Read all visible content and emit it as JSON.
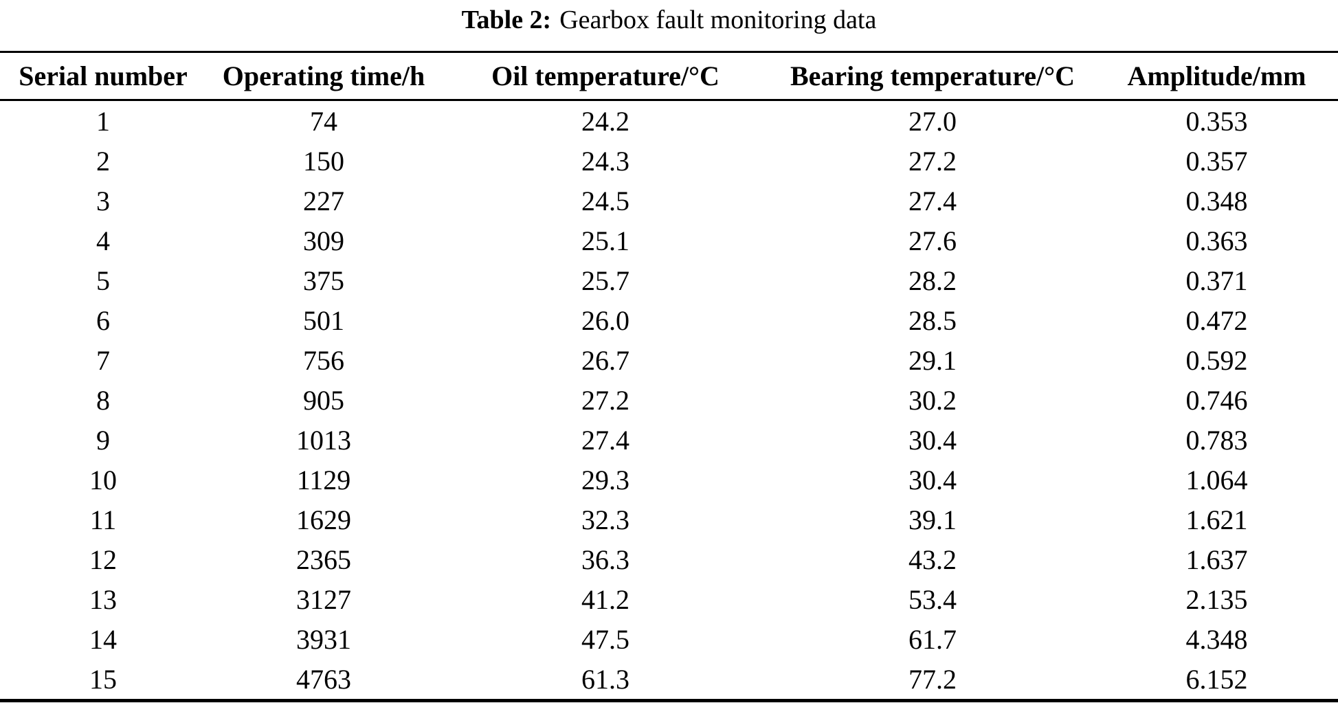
{
  "page": {
    "caption_label": "Table 2:",
    "caption_text": "Gearbox fault monitoring data"
  },
  "table": {
    "columns": [
      "Serial number",
      "Operating time/h",
      "Oil temperature/°C",
      "Bearing temperature/°C",
      "Amplitude/mm"
    ],
    "rows": [
      [
        "1",
        "74",
        "24.2",
        "27.0",
        "0.353"
      ],
      [
        "2",
        "150",
        "24.3",
        "27.2",
        "0.357"
      ],
      [
        "3",
        "227",
        "24.5",
        "27.4",
        "0.348"
      ],
      [
        "4",
        "309",
        "25.1",
        "27.6",
        "0.363"
      ],
      [
        "5",
        "375",
        "25.7",
        "28.2",
        "0.371"
      ],
      [
        "6",
        "501",
        "26.0",
        "28.5",
        "0.472"
      ],
      [
        "7",
        "756",
        "26.7",
        "29.1",
        "0.592"
      ],
      [
        "8",
        "905",
        "27.2",
        "30.2",
        "0.746"
      ],
      [
        "9",
        "1013",
        "27.4",
        "30.4",
        "0.783"
      ],
      [
        "10",
        "1129",
        "29.3",
        "30.4",
        "1.064"
      ],
      [
        "11",
        "1629",
        "32.3",
        "39.1",
        "1.621"
      ],
      [
        "12",
        "2365",
        "36.3",
        "43.2",
        "1.637"
      ],
      [
        "13",
        "3127",
        "41.2",
        "53.4",
        "2.135"
      ],
      [
        "14",
        "3931",
        "47.5",
        "61.7",
        "4.348"
      ],
      [
        "15",
        "4763",
        "61.3",
        "77.2",
        "6.152"
      ]
    ],
    "colors": {
      "text": "#000000",
      "background": "#ffffff",
      "rule": "#000000"
    }
  }
}
